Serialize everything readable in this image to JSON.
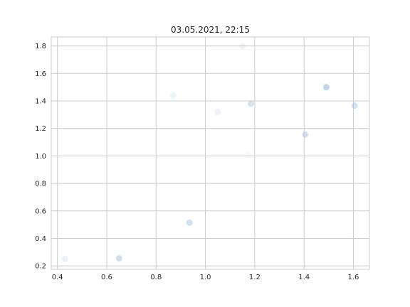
{
  "chart_data": {
    "type": "scatter",
    "title": "03.05.2021, 22:15",
    "xlabel": "",
    "ylabel": "",
    "xlim": [
      0.375,
      1.665
    ],
    "ylim": [
      0.175,
      1.865
    ],
    "xticks": [
      0.4,
      0.6,
      0.8,
      1.0,
      1.2,
      1.4,
      1.6
    ],
    "xtick_labels": [
      "0.4",
      "0.6",
      "0.8",
      "1.0",
      "1.2",
      "1.4",
      "1.6"
    ],
    "yticks": [
      0.2,
      0.4,
      0.6,
      0.8,
      1.0,
      1.2,
      1.4,
      1.6,
      1.8
    ],
    "ytick_labels": [
      "0.2",
      "0.4",
      "0.6",
      "0.8",
      "1.0",
      "1.2",
      "1.4",
      "1.6",
      "1.8"
    ],
    "grid": true,
    "point_color": "#aac8e6",
    "grid_color": "#cccccc",
    "points": [
      {
        "x": 0.43,
        "y": 0.25,
        "opacity": 0.22
      },
      {
        "x": 0.65,
        "y": 0.255,
        "opacity": 0.6
      },
      {
        "x": 0.87,
        "y": 1.44,
        "opacity": 0.22
      },
      {
        "x": 0.935,
        "y": 0.515,
        "opacity": 0.55
      },
      {
        "x": 1.05,
        "y": 1.32,
        "opacity": 0.22
      },
      {
        "x": 1.15,
        "y": 1.795,
        "opacity": 0.18
      },
      {
        "x": 1.175,
        "y": 1.005,
        "opacity": 0.12
      },
      {
        "x": 1.185,
        "y": 1.38,
        "opacity": 0.5
      },
      {
        "x": 1.405,
        "y": 1.155,
        "opacity": 0.55
      },
      {
        "x": 1.49,
        "y": 1.5,
        "opacity": 0.75
      },
      {
        "x": 1.605,
        "y": 1.365,
        "opacity": 0.55
      }
    ]
  }
}
